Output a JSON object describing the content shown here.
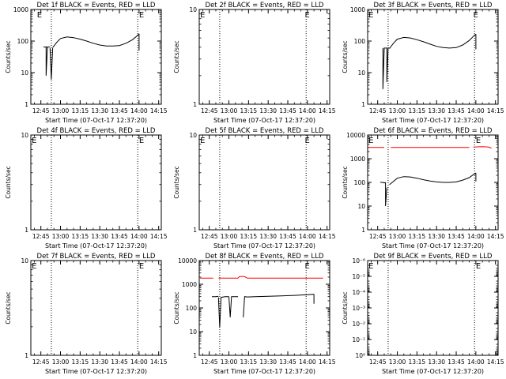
{
  "figure": {
    "x_ticks": [
      "12:45",
      "13:00",
      "13:15",
      "13:30",
      "13:45",
      "14:00",
      "14:15"
    ],
    "xlabel": "Start Time (07-Oct-17 12:37:20)"
  },
  "chart_data": [
    {
      "type": "line",
      "title": "Det 1f BLACK = Events, RED = LLD",
      "ylabel": "Counts/sec",
      "scale": "log",
      "ylim": [
        1,
        1000
      ],
      "xlim": [
        "12:37:20",
        "14:17:00"
      ],
      "x_tick_values": [
        "12:45",
        "13:00",
        "13:15",
        "13:30",
        "13:45",
        "14:00",
        "14:15"
      ],
      "y_ticks": [
        "1",
        "10",
        "100",
        "1000"
      ],
      "vlines": [
        "12:53",
        "13:59"
      ],
      "markers": [
        {
          "label": "E",
          "x": "12:42"
        },
        {
          "label": "E",
          "x": "14:00"
        }
      ],
      "series": [
        {
          "color": "#000000",
          "segments": [
            {
              "x": [
                "12:47",
                "12:48",
                "12:49",
                "12:50",
                "12:51",
                "12:52"
              ],
              "y": [
                65,
                65,
                65,
                65,
                65,
                65
              ]
            },
            {
              "x": [
                "12:49",
                "12:49",
                "12:50"
              ],
              "y": [
                65,
                8,
                65
              ]
            },
            {
              "x": [
                "12:52",
                "12:53",
                "12:54"
              ],
              "y": [
                60,
                6,
                60
              ]
            },
            {
              "x": [
                "12:54",
                "12:57",
                "13:00",
                "13:05",
                "13:10",
                "13:15",
                "13:20",
                "13:25",
                "13:30",
                "13:35",
                "13:40",
                "13:45",
                "13:50",
                "13:55",
                "13:58",
                "14:00"
              ],
              "y": [
                62,
                90,
                120,
                135,
                128,
                115,
                100,
                85,
                75,
                70,
                70,
                72,
                85,
                110,
                140,
                170
              ]
            },
            {
              "x": [
                "14:00",
                "14:00"
              ],
              "y": [
                170,
                50
              ]
            }
          ]
        }
      ]
    },
    {
      "type": "line",
      "title": "Det 2f BLACK = Events, RED = LLD",
      "ylabel": "Counts/sec",
      "scale": "log",
      "ylim": [
        1,
        10
      ],
      "xlim": [
        "12:37:20",
        "14:17:00"
      ],
      "x_tick_values": [
        "12:45",
        "13:00",
        "13:15",
        "13:30",
        "13:45",
        "14:00",
        "14:15"
      ],
      "y_ticks": [
        "1",
        "10"
      ],
      "vlines": [
        "12:53",
        "13:59"
      ],
      "markers": [
        {
          "label": "E",
          "x": "12:38"
        },
        {
          "label": "E",
          "x": "13:58"
        }
      ],
      "series": []
    },
    {
      "type": "line",
      "title": "Det 3f BLACK = Events, RED = LLD",
      "ylabel": "Counts/sec",
      "scale": "log",
      "ylim": [
        1,
        1000
      ],
      "xlim": [
        "12:37:20",
        "14:17:00"
      ],
      "x_tick_values": [
        "12:45",
        "13:00",
        "13:15",
        "13:30",
        "13:45",
        "14:00",
        "14:15"
      ],
      "y_ticks": [
        "1",
        "10",
        "100",
        "1000"
      ],
      "vlines": [
        "12:53",
        "13:59"
      ],
      "markers": [
        {
          "label": "E",
          "x": "12:38"
        },
        {
          "label": "E",
          "x": "13:58"
        }
      ],
      "series": [
        {
          "color": "#000000",
          "segments": [
            {
              "x": [
                "12:49",
                "12:49",
                "12:50",
                "12:51"
              ],
              "y": [
                60,
                3,
                60,
                60
              ]
            },
            {
              "x": [
                "12:51",
                "12:52",
                "12:52",
                "12:53",
                "12:54"
              ],
              "y": [
                60,
                60,
                5,
                60,
                60
              ]
            },
            {
              "x": [
                "12:54",
                "12:57",
                "13:00",
                "13:05",
                "13:10",
                "13:15",
                "13:20",
                "13:25",
                "13:30",
                "13:35",
                "13:40",
                "13:45",
                "13:50",
                "13:55",
                "13:58",
                "14:00"
              ],
              "y": [
                58,
                85,
                115,
                130,
                125,
                110,
                95,
                80,
                68,
                62,
                60,
                62,
                75,
                105,
                140,
                165
              ]
            },
            {
              "x": [
                "14:00",
                "14:00"
              ],
              "y": [
                165,
                55
              ]
            }
          ]
        }
      ]
    },
    {
      "type": "line",
      "title": "Det 4f BLACK = Events, RED = LLD",
      "ylabel": "Counts/sec",
      "scale": "log",
      "ylim": [
        1,
        10
      ],
      "xlim": [
        "12:37:20",
        "14:17:00"
      ],
      "x_tick_values": [
        "12:45",
        "13:00",
        "13:15",
        "13:30",
        "13:45",
        "14:00",
        "14:15"
      ],
      "y_ticks": [
        "1",
        "10"
      ],
      "vlines": [
        "12:53",
        "13:59"
      ],
      "markers": [
        {
          "label": "E",
          "x": "12:38"
        },
        {
          "label": "E",
          "x": "14:00"
        }
      ],
      "series": []
    },
    {
      "type": "line",
      "title": "Det 5f BLACK = Events, RED = LLD",
      "ylabel": "Counts/sec",
      "scale": "log",
      "ylim": [
        1,
        10
      ],
      "xlim": [
        "12:37:20",
        "14:17:00"
      ],
      "x_tick_values": [
        "12:45",
        "13:00",
        "13:15",
        "13:30",
        "13:45",
        "14:00",
        "14:15"
      ],
      "y_ticks": [
        "1",
        "10"
      ],
      "vlines": [
        "12:53",
        "13:59"
      ],
      "markers": [
        {
          "label": "E",
          "x": "12:38"
        },
        {
          "label": "E",
          "x": "13:58"
        }
      ],
      "series": []
    },
    {
      "type": "line",
      "title": "Det 6f BLACK = Events, RED = LLD",
      "ylabel": "Counts/sec",
      "scale": "log",
      "ylim": [
        1,
        10000
      ],
      "xlim": [
        "12:37:20",
        "14:17:00"
      ],
      "x_tick_values": [
        "12:45",
        "13:00",
        "13:15",
        "13:30",
        "13:45",
        "14:00",
        "14:15"
      ],
      "y_ticks": [
        "1",
        "10",
        "100",
        "1000",
        "10000"
      ],
      "vlines": [
        "12:53",
        "13:59"
      ],
      "markers": [
        {
          "label": "E",
          "x": "12:38"
        },
        {
          "label": "E",
          "x": "14:00"
        }
      ],
      "series": [
        {
          "color": "#ff0000",
          "segments": [
            {
              "x": [
                "12:38",
                "12:50"
              ],
              "y": [
                3000,
                3000
              ]
            },
            {
              "x": [
                "12:55",
                "13:55"
              ],
              "y": [
                3000,
                3000
              ]
            },
            {
              "x": [
                "13:58",
                "14:05",
                "14:10",
                "14:12"
              ],
              "y": [
                3100,
                3200,
                3100,
                2800
              ]
            }
          ]
        },
        {
          "color": "#000000",
          "segments": [
            {
              "x": [
                "12:47",
                "12:49",
                "12:50",
                "12:51"
              ],
              "y": [
                100,
                100,
                95,
                100
              ]
            },
            {
              "x": [
                "12:51",
                "12:51",
                "12:52"
              ],
              "y": [
                100,
                10,
                60
              ]
            },
            {
              "x": [
                "12:54",
                "12:57",
                "13:00",
                "13:05",
                "13:10",
                "13:15",
                "13:20",
                "13:25",
                "13:30",
                "13:35",
                "13:40",
                "13:45",
                "13:50",
                "13:55",
                "13:58",
                "14:00"
              ],
              "y": [
                80,
                110,
                150,
                175,
                170,
                150,
                130,
                115,
                105,
                100,
                100,
                105,
                125,
                160,
                210,
                250
              ]
            },
            {
              "x": [
                "14:00",
                "14:00"
              ],
              "y": [
                250,
                110
              ]
            }
          ]
        }
      ]
    },
    {
      "type": "line",
      "title": "Det 7f BLACK = Events, RED = LLD",
      "ylabel": "Counts/sec",
      "scale": "log",
      "ylim": [
        1,
        10
      ],
      "xlim": [
        "12:37:20",
        "14:17:00"
      ],
      "x_tick_values": [
        "12:45",
        "13:00",
        "13:15",
        "13:30",
        "13:45",
        "14:00",
        "14:15"
      ],
      "y_ticks": [
        "1",
        "10"
      ],
      "vlines": [
        "12:53",
        "13:59"
      ],
      "markers": [
        {
          "label": "E",
          "x": "12:38"
        },
        {
          "label": "E",
          "x": "14:00"
        }
      ],
      "series": []
    },
    {
      "type": "line",
      "title": "Det 8f BLACK = Events, RED = LLD",
      "ylabel": "Counts/sec",
      "scale": "log",
      "ylim": [
        1,
        10000
      ],
      "xlim": [
        "12:37:20",
        "14:17:00"
      ],
      "x_tick_values": [
        "12:45",
        "13:00",
        "13:15",
        "13:30",
        "13:45",
        "14:00",
        "14:15"
      ],
      "y_ticks": [
        "1",
        "10",
        "100",
        "1000",
        "10000"
      ],
      "vlines": [
        "12:53",
        "13:59"
      ],
      "markers": [
        {
          "label": "E",
          "x": "13:58"
        }
      ],
      "series": [
        {
          "color": "#ff0000",
          "segments": [
            {
              "x": [
                "12:38",
                "12:48"
              ],
              "y": [
                1800,
                1800
              ]
            },
            {
              "x": [
                "12:52",
                "13:07"
              ],
              "y": [
                1800,
                1800
              ]
            },
            {
              "x": [
                "13:07",
                "13:08",
                "13:12",
                "13:14"
              ],
              "y": [
                1800,
                2100,
                2100,
                1800
              ]
            },
            {
              "x": [
                "13:14",
                "14:12"
              ],
              "y": [
                1800,
                1800
              ]
            }
          ]
        },
        {
          "color": "#000000",
          "segments": [
            {
              "x": [
                "12:47",
                "12:50",
                "12:52"
              ],
              "y": [
                300,
                300,
                310
              ]
            },
            {
              "x": [
                "12:52",
                "12:53",
                "12:54",
                "12:57",
                "12:59",
                "13:00"
              ],
              "y": [
                280,
                15,
                280,
                300,
                300,
                300
              ]
            },
            {
              "x": [
                "13:00",
                "13:01",
                "13:02",
                "13:05",
                "13:07"
              ],
              "y": [
                300,
                40,
                300,
                300,
                300
              ]
            },
            {
              "x": [
                "13:11",
                "13:12",
                "13:14",
                "13:20",
                "13:30",
                "13:40",
                "13:50",
                "14:00",
                "14:05"
              ],
              "y": [
                40,
                300,
                290,
                300,
                310,
                320,
                340,
                360,
                380
              ]
            },
            {
              "x": [
                "14:05",
                "14:05"
              ],
              "y": [
                380,
                150
              ]
            }
          ]
        }
      ]
    },
    {
      "type": "line",
      "title": "Det 9f BLACK = Events, RED = LLD",
      "ylabel": "Counts/sec",
      "scale": "log",
      "ylim": [
        1,
        1e-06
      ],
      "xlim": [
        "12:37:20",
        "14:17:00"
      ],
      "x_tick_values": [
        "12:45",
        "13:00",
        "13:15",
        "13:30",
        "13:45",
        "14:00",
        "14:15"
      ],
      "y_ticks": [
        "10⁰",
        "10⁻¹",
        "10⁻²",
        "10⁻³",
        "10⁻⁴",
        "10⁻⁵",
        "10⁻⁶"
      ],
      "vlines": [
        "12:53",
        "13:59"
      ],
      "markers": [
        {
          "label": "E",
          "x": "12:38"
        },
        {
          "label": "E",
          "x": "14:00"
        }
      ],
      "series": []
    }
  ]
}
